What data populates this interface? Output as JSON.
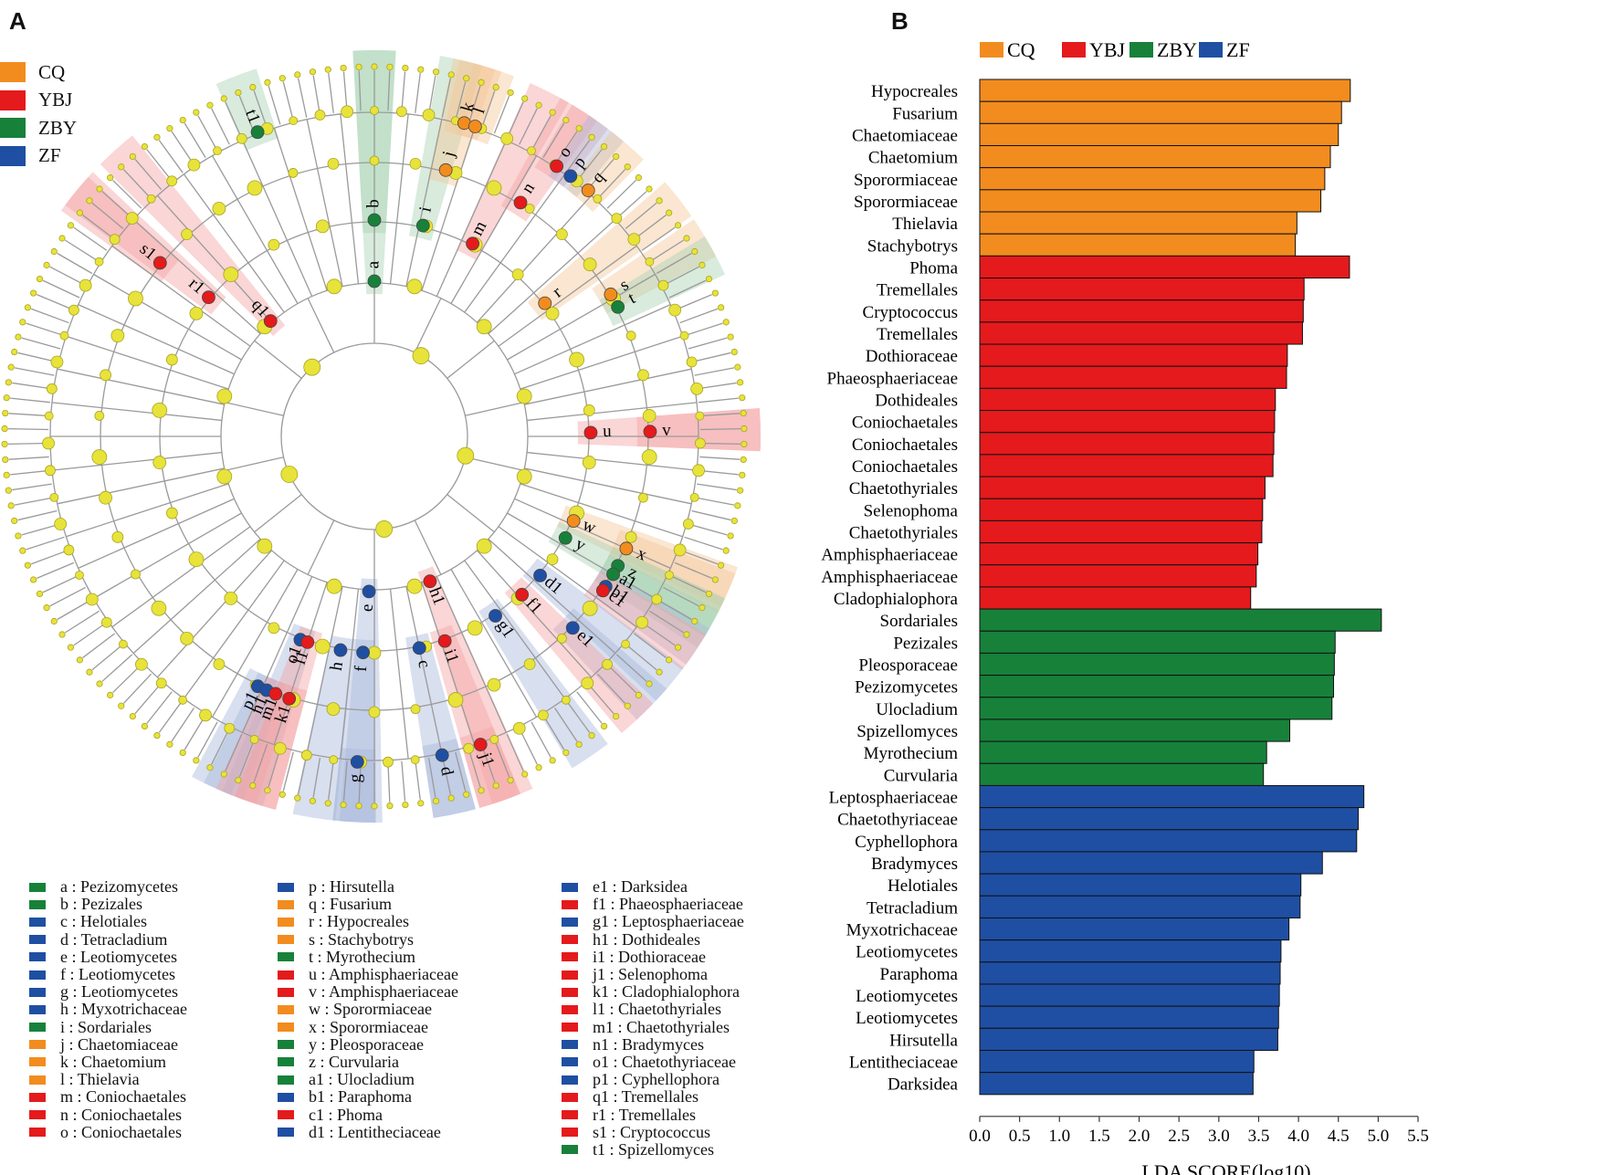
{
  "panel_a": {
    "letter": "A",
    "legend": [
      {
        "label": "CQ",
        "color": "#f28c1e"
      },
      {
        "label": "YBJ",
        "color": "#e41a1c"
      },
      {
        "label": "ZBY",
        "color": "#17813a"
      },
      {
        "label": "ZF",
        "color": "#1f4fa3"
      }
    ],
    "markers": [
      {
        "code": "a",
        "group": "ZBY",
        "angle": -90,
        "ring": 2
      },
      {
        "code": "b",
        "group": "ZBY",
        "angle": -90,
        "ring": 3
      },
      {
        "code": "i",
        "group": "ZBY",
        "angle": -77,
        "ring": 3
      },
      {
        "code": "j",
        "group": "CQ",
        "angle": -75,
        "ring": 4
      },
      {
        "code": "k",
        "group": "CQ",
        "angle": -74,
        "ring": 5
      },
      {
        "code": "l",
        "group": "CQ",
        "angle": -72,
        "ring": 5
      },
      {
        "code": "m",
        "group": "YBJ",
        "angle": -63,
        "ring": 3
      },
      {
        "code": "n",
        "group": "YBJ",
        "angle": -58,
        "ring": 4
      },
      {
        "code": "o",
        "group": "YBJ",
        "angle": -56,
        "ring": 5
      },
      {
        "code": "p",
        "group": "ZF",
        "angle": -53,
        "ring": 5
      },
      {
        "code": "q",
        "group": "CQ",
        "angle": -49,
        "ring": 5
      },
      {
        "code": "r",
        "group": "CQ",
        "angle": -38,
        "ring": 3
      },
      {
        "code": "s",
        "group": "CQ",
        "angle": -31,
        "ring": 4
      },
      {
        "code": "t",
        "group": "ZBY",
        "angle": -28,
        "ring": 4
      },
      {
        "code": "u",
        "group": "YBJ",
        "angle": -1,
        "ring": 3
      },
      {
        "code": "v",
        "group": "YBJ",
        "angle": -1,
        "ring": 4
      },
      {
        "code": "w",
        "group": "CQ",
        "angle": 23,
        "ring": 3
      },
      {
        "code": "y",
        "group": "ZBY",
        "angle": 28,
        "ring": 3
      },
      {
        "code": "x",
        "group": "CQ",
        "angle": 24,
        "ring": 4
      },
      {
        "code": "z",
        "group": "ZBY",
        "angle": 28,
        "ring": 4
      },
      {
        "code": "a1",
        "group": "ZBY",
        "angle": 30,
        "ring": 4
      },
      {
        "code": "b1",
        "group": "ZF",
        "angle": 33,
        "ring": 4
      },
      {
        "code": "c1",
        "group": "YBJ",
        "angle": 34,
        "ring": 4
      },
      {
        "code": "d1",
        "group": "ZF",
        "angle": 40,
        "ring": 3
      },
      {
        "code": "e1",
        "group": "ZF",
        "angle": 44,
        "ring": 4
      },
      {
        "code": "f1",
        "group": "YBJ",
        "angle": 47,
        "ring": 3
      },
      {
        "code": "g1",
        "group": "ZF",
        "angle": 56,
        "ring": 3
      },
      {
        "code": "h1",
        "group": "YBJ",
        "angle": 69,
        "ring": 2
      },
      {
        "code": "i1",
        "group": "YBJ",
        "angle": 71,
        "ring": 3
      },
      {
        "code": "j1",
        "group": "YBJ",
        "angle": 71,
        "ring": 5
      },
      {
        "code": "c",
        "group": "ZF",
        "angle": 78,
        "ring": 3
      },
      {
        "code": "d",
        "group": "ZF",
        "angle": 78,
        "ring": 5
      },
      {
        "code": "e",
        "group": "ZF",
        "angle": 92,
        "ring": 2
      },
      {
        "code": "f",
        "group": "ZF",
        "angle": 93,
        "ring": 3
      },
      {
        "code": "g",
        "group": "ZF",
        "angle": 93,
        "ring": 5
      },
      {
        "code": "h",
        "group": "ZF",
        "angle": 99,
        "ring": 3
      },
      {
        "code": "o1",
        "group": "ZF",
        "angle": 110,
        "ring": 3
      },
      {
        "code": "l1",
        "group": "YBJ",
        "angle": 108,
        "ring": 3
      },
      {
        "code": "p1",
        "group": "ZF",
        "angle": 115,
        "ring": 4
      },
      {
        "code": "n1",
        "group": "ZF",
        "angle": 113,
        "ring": 4
      },
      {
        "code": "m1",
        "group": "YBJ",
        "angle": 111,
        "ring": 4
      },
      {
        "code": "k1",
        "group": "YBJ",
        "angle": 108,
        "ring": 4
      },
      {
        "code": "q1",
        "group": "YBJ",
        "angle": -132,
        "ring": 2
      },
      {
        "code": "r1",
        "group": "YBJ",
        "angle": -140,
        "ring": 3
      },
      {
        "code": "s1",
        "group": "YBJ",
        "angle": -141,
        "ring": 4
      },
      {
        "code": "t1",
        "group": "ZBY",
        "angle": -111,
        "ring": 5
      }
    ],
    "key": [
      [
        {
          "text": "a : Pezizomycetes",
          "group": "ZBY"
        },
        {
          "text": "b : Pezizales",
          "group": "ZBY"
        },
        {
          "text": "c : Helotiales",
          "group": "ZF"
        },
        {
          "text": "d : Tetracladium",
          "group": "ZF"
        },
        {
          "text": "e : Leotiomycetes",
          "group": "ZF"
        },
        {
          "text": "f : Leotiomycetes",
          "group": "ZF"
        },
        {
          "text": "g : Leotiomycetes",
          "group": "ZF"
        },
        {
          "text": "h : Myxotrichaceae",
          "group": "ZF"
        },
        {
          "text": "i : Sordariales",
          "group": "ZBY"
        },
        {
          "text": "j : Chaetomiaceae",
          "group": "CQ"
        },
        {
          "text": "k : Chaetomium",
          "group": "CQ"
        },
        {
          "text": "l : Thielavia",
          "group": "CQ"
        },
        {
          "text": "m : Coniochaetales",
          "group": "YBJ"
        },
        {
          "text": "n : Coniochaetales",
          "group": "YBJ"
        },
        {
          "text": "o : Coniochaetales",
          "group": "YBJ"
        }
      ],
      [
        {
          "text": "p : Hirsutella",
          "group": "ZF"
        },
        {
          "text": "q : Fusarium",
          "group": "CQ"
        },
        {
          "text": "r : Hypocreales",
          "group": "CQ"
        },
        {
          "text": "s : Stachybotrys",
          "group": "CQ"
        },
        {
          "text": "t : Myrothecium",
          "group": "ZBY"
        },
        {
          "text": "u : Amphisphaeriaceae",
          "group": "YBJ"
        },
        {
          "text": "v : Amphisphaeriaceae",
          "group": "YBJ"
        },
        {
          "text": "w : Sporormiaceae",
          "group": "CQ"
        },
        {
          "text": "x : Sporormiaceae",
          "group": "CQ"
        },
        {
          "text": "y : Pleosporaceae",
          "group": "ZBY"
        },
        {
          "text": "z : Curvularia",
          "group": "ZBY"
        },
        {
          "text": "a1 : Ulocladium",
          "group": "ZBY"
        },
        {
          "text": "b1 : Paraphoma",
          "group": "ZF"
        },
        {
          "text": "c1 : Phoma",
          "group": "YBJ"
        },
        {
          "text": "d1 : Lentitheciaceae",
          "group": "ZF"
        }
      ],
      [
        {
          "text": "e1 : Darksidea",
          "group": "ZF"
        },
        {
          "text": "f1 : Phaeosphaeriaceae",
          "group": "YBJ"
        },
        {
          "text": "g1 : Leptosphaeriaceae",
          "group": "ZF"
        },
        {
          "text": "h1 : Dothideales",
          "group": "YBJ"
        },
        {
          "text": "i1 : Dothioraceae",
          "group": "YBJ"
        },
        {
          "text": "j1 : Selenophoma",
          "group": "YBJ"
        },
        {
          "text": "k1 : Cladophialophora",
          "group": "YBJ"
        },
        {
          "text": "l1 : Chaetothyriales",
          "group": "YBJ"
        },
        {
          "text": "m1 : Chaetothyriales",
          "group": "YBJ"
        },
        {
          "text": "n1 : Bradymyces",
          "group": "ZF"
        },
        {
          "text": "o1 : Chaetothyriaceae",
          "group": "ZF"
        },
        {
          "text": "p1 : Cyphellophora",
          "group": "ZF"
        },
        {
          "text": "q1 : Tremellales",
          "group": "YBJ"
        },
        {
          "text": "r1 : Tremellales",
          "group": "YBJ"
        },
        {
          "text": "s1 : Cryptococcus",
          "group": "YBJ"
        },
        {
          "text": "t1 : Spizellomyces",
          "group": "ZBY"
        }
      ]
    ]
  },
  "panel_b": {
    "letter": "B"
  },
  "chart_data": [
    {
      "type": "cladogram",
      "title": "",
      "groups": [
        "CQ",
        "YBJ",
        "ZBY",
        "ZF"
      ]
    },
    {
      "type": "bar",
      "orientation": "horizontal",
      "xlabel": "LDA SCORE(log10)",
      "xlim": [
        0,
        5.5
      ],
      "xticks": [
        "0.0",
        "0.5",
        "1.0",
        "1.5",
        "2.0",
        "2.5",
        "3.0",
        "3.5",
        "4.0",
        "4.5",
        "5.0",
        "5.5"
      ],
      "legend": [
        {
          "name": "CQ",
          "color": "#f28c1e"
        },
        {
          "name": "YBJ",
          "color": "#e41a1c"
        },
        {
          "name": "ZBY",
          "color": "#17813a"
        },
        {
          "name": "ZF",
          "color": "#1f4fa3"
        }
      ],
      "bars": [
        {
          "label": "Hypocreales",
          "value": 4.65,
          "group": "CQ"
        },
        {
          "label": "Fusarium",
          "value": 4.54,
          "group": "CQ"
        },
        {
          "label": "Chaetomiaceae",
          "value": 4.5,
          "group": "CQ"
        },
        {
          "label": "Chaetomium",
          "value": 4.4,
          "group": "CQ"
        },
        {
          "label": "Sporormiaceae",
          "value": 4.33,
          "group": "CQ"
        },
        {
          "label": "Sporormiaceae",
          "value": 4.28,
          "group": "CQ"
        },
        {
          "label": "Thielavia",
          "value": 3.98,
          "group": "CQ"
        },
        {
          "label": "Stachybotrys",
          "value": 3.96,
          "group": "CQ"
        },
        {
          "label": "Phoma",
          "value": 4.64,
          "group": "YBJ"
        },
        {
          "label": "Tremellales",
          "value": 4.07,
          "group": "YBJ"
        },
        {
          "label": "Cryptococcus",
          "value": 4.06,
          "group": "YBJ"
        },
        {
          "label": "Tremellales",
          "value": 4.05,
          "group": "YBJ"
        },
        {
          "label": "Dothioraceae",
          "value": 3.86,
          "group": "YBJ"
        },
        {
          "label": "Phaeosphaeriaceae",
          "value": 3.85,
          "group": "YBJ"
        },
        {
          "label": "Dothideales",
          "value": 3.71,
          "group": "YBJ"
        },
        {
          "label": "Coniochaetales",
          "value": 3.7,
          "group": "YBJ"
        },
        {
          "label": "Coniochaetales",
          "value": 3.69,
          "group": "YBJ"
        },
        {
          "label": "Coniochaetales",
          "value": 3.68,
          "group": "YBJ"
        },
        {
          "label": "Chaetothyriales",
          "value": 3.58,
          "group": "YBJ"
        },
        {
          "label": "Selenophoma",
          "value": 3.55,
          "group": "YBJ"
        },
        {
          "label": "Chaetothyriales",
          "value": 3.54,
          "group": "YBJ"
        },
        {
          "label": "Amphisphaeriaceae",
          "value": 3.49,
          "group": "YBJ"
        },
        {
          "label": "Amphisphaeriaceae",
          "value": 3.47,
          "group": "YBJ"
        },
        {
          "label": "Cladophialophora",
          "value": 3.4,
          "group": "YBJ"
        },
        {
          "label": "Sordariales",
          "value": 5.04,
          "group": "ZBY"
        },
        {
          "label": "Pezizales",
          "value": 4.46,
          "group": "ZBY"
        },
        {
          "label": "Pleosporaceae",
          "value": 4.45,
          "group": "ZBY"
        },
        {
          "label": "Pezizomycetes",
          "value": 4.44,
          "group": "ZBY"
        },
        {
          "label": "Ulocladium",
          "value": 4.42,
          "group": "ZBY"
        },
        {
          "label": "Spizellomyces",
          "value": 3.89,
          "group": "ZBY"
        },
        {
          "label": "Myrothecium",
          "value": 3.6,
          "group": "ZBY"
        },
        {
          "label": "Curvularia",
          "value": 3.56,
          "group": "ZBY"
        },
        {
          "label": "Leptosphaeriaceae",
          "value": 4.82,
          "group": "ZF"
        },
        {
          "label": "Chaetothyriaceae",
          "value": 4.75,
          "group": "ZF"
        },
        {
          "label": "Cyphellophora",
          "value": 4.73,
          "group": "ZF"
        },
        {
          "label": "Bradymyces",
          "value": 4.3,
          "group": "ZF"
        },
        {
          "label": "Helotiales",
          "value": 4.03,
          "group": "ZF"
        },
        {
          "label": "Tetracladium",
          "value": 4.02,
          "group": "ZF"
        },
        {
          "label": "Myxotrichaceae",
          "value": 3.88,
          "group": "ZF"
        },
        {
          "label": "Leotiomycetes",
          "value": 3.78,
          "group": "ZF"
        },
        {
          "label": "Paraphoma",
          "value": 3.77,
          "group": "ZF"
        },
        {
          "label": "Leotiomycetes",
          "value": 3.76,
          "group": "ZF"
        },
        {
          "label": "Leotiomycetes",
          "value": 3.75,
          "group": "ZF"
        },
        {
          "label": "Hirsutella",
          "value": 3.74,
          "group": "ZF"
        },
        {
          "label": "Lentitheciaceae",
          "value": 3.44,
          "group": "ZF"
        },
        {
          "label": "Darksidea",
          "value": 3.43,
          "group": "ZF"
        }
      ]
    }
  ]
}
